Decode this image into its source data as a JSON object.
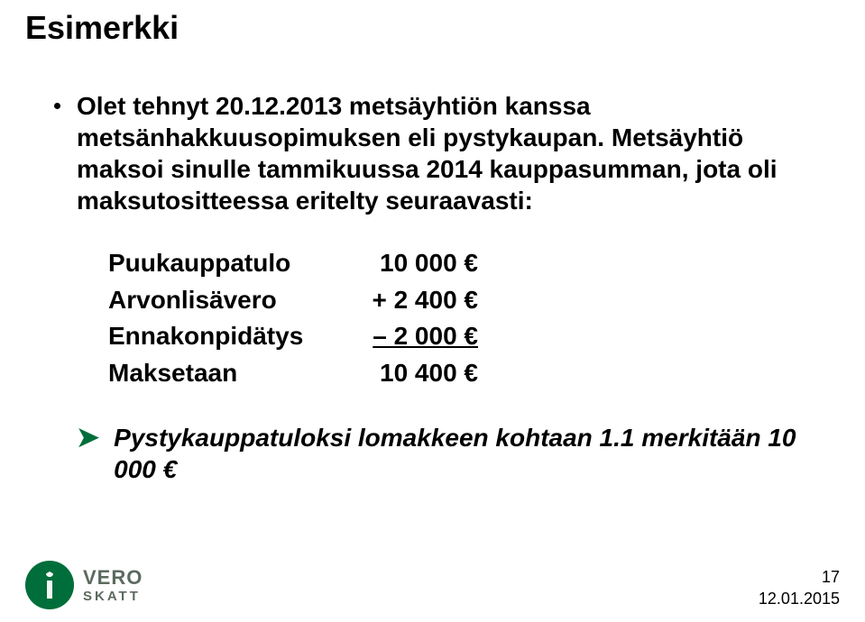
{
  "title": "Esimerkki",
  "bullet": "Olet tehnyt 20.12.2013 metsäyhtiön kanssa metsänhakkuusopimuksen eli pystykaupan. Metsäyhtiö maksoi sinulle tammikuussa 2014 kauppasumman, jota oli maksutositteessa eritelty seuraavasti:",
  "rows": [
    {
      "label": "Puukauppatulo",
      "value": "10 000 €"
    },
    {
      "label": "Arvonlisävero",
      "value": "+ 2 400 €"
    },
    {
      "label": "Ennakonpidätys",
      "value": "– 2 000 €"
    },
    {
      "label": "Maksetaan",
      "value": "10 400 €"
    }
  ],
  "conclusion": "Pystykauppatuloksi lomakkeen kohtaan 1.1 merkitään 10 000 €",
  "logo": {
    "line1": "VERO",
    "line2": "SKATT"
  },
  "page_number": "17",
  "date": "12.01.2015",
  "colors": {
    "accent": "#006e3a",
    "text": "#000000",
    "logo_text": "#5b6b5f",
    "background": "#ffffff"
  },
  "typography": {
    "title_pt": 36,
    "body_pt": 28,
    "meta_pt": 18,
    "weight": "bold"
  }
}
